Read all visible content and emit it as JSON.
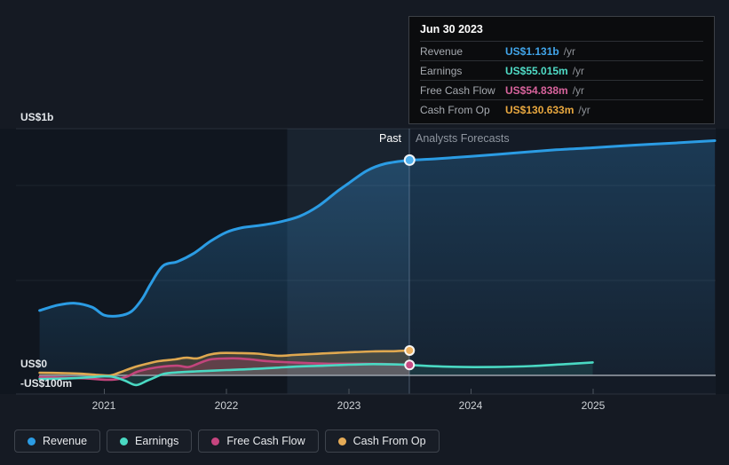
{
  "tooltip": {
    "date": "Jun 30 2023",
    "rows": [
      {
        "label": "Revenue",
        "value": "US$1.131b",
        "suffix": "/yr",
        "color": "#41a5ea"
      },
      {
        "label": "Earnings",
        "value": "US$55.015m",
        "suffix": "/yr",
        "color": "#4fdcc6"
      },
      {
        "label": "Free Cash Flow",
        "value": "US$54.838m",
        "suffix": "/yr",
        "color": "#d8639c"
      },
      {
        "label": "Cash From Op",
        "value": "US$130.633m",
        "suffix": "/yr",
        "color": "#e9a83f"
      }
    ]
  },
  "labels": {
    "past": "Past",
    "forecast": "Analysts Forecasts"
  },
  "axis": {
    "y_labels": [
      "US$1b",
      "US$0",
      "-US$100m"
    ],
    "x_labels": [
      "2021",
      "2022",
      "2023",
      "2024",
      "2025"
    ]
  },
  "legend": [
    {
      "label": "Revenue",
      "color": "#2b9ce4"
    },
    {
      "label": "Earnings",
      "color": "#4ad9c3"
    },
    {
      "label": "Free Cash Flow",
      "color": "#c6457f"
    },
    {
      "label": "Cash From Op",
      "color": "#e5ab57"
    }
  ],
  "chart_data": {
    "type": "line",
    "x_unit": "year",
    "y_unit": "US$ millions per year",
    "ylim_m": [
      -100,
      1300
    ],
    "x_axis_ticks": [
      2021,
      2022,
      2023,
      2024,
      2025
    ],
    "y_gridline_values_m": [
      0,
      500,
      1000
    ],
    "past_forecast_boundary_x": 2023.5,
    "grid": true,
    "legend_position": "bottom-left",
    "series": [
      {
        "name": "Revenue",
        "color": "#2b9ce4",
        "width": 3,
        "fill": "gradient",
        "past": [
          [
            2020.47,
            341
          ],
          [
            2020.62,
            369
          ],
          [
            2020.76,
            379
          ],
          [
            2020.9,
            358
          ],
          [
            2021.0,
            316
          ],
          [
            2021.12,
            313
          ],
          [
            2021.22,
            335
          ],
          [
            2021.31,
            402
          ],
          [
            2021.38,
            481
          ],
          [
            2021.48,
            575
          ],
          [
            2021.6,
            598
          ],
          [
            2021.73,
            640
          ],
          [
            2021.87,
            705
          ],
          [
            2022.0,
            752
          ],
          [
            2022.13,
            776
          ],
          [
            2022.3,
            790
          ],
          [
            2022.45,
            808
          ],
          [
            2022.6,
            836
          ],
          [
            2022.75,
            888
          ],
          [
            2022.9,
            963
          ],
          [
            2023.0,
            1009
          ],
          [
            2023.15,
            1075
          ],
          [
            2023.3,
            1112
          ],
          [
            2023.5,
            1131
          ]
        ],
        "forecast": [
          [
            2023.5,
            1131
          ],
          [
            2023.7,
            1137
          ],
          [
            2024.0,
            1150
          ],
          [
            2024.35,
            1168
          ],
          [
            2024.7,
            1185
          ],
          [
            2025.0,
            1196
          ],
          [
            2025.35,
            1210
          ],
          [
            2025.7,
            1222
          ],
          [
            2026.0,
            1233
          ]
        ]
      },
      {
        "name": "Cash From Op",
        "color": "#dfa850",
        "width": 2.6,
        "fill_opacity": 0.22,
        "past": [
          [
            2020.47,
            14
          ],
          [
            2020.65,
            12
          ],
          [
            2020.8,
            9
          ],
          [
            2020.95,
            2
          ],
          [
            2021.05,
            0
          ],
          [
            2021.12,
            14
          ],
          [
            2021.24,
            42
          ],
          [
            2021.35,
            61
          ],
          [
            2021.45,
            75
          ],
          [
            2021.58,
            84
          ],
          [
            2021.67,
            93
          ],
          [
            2021.76,
            89
          ],
          [
            2021.85,
            107
          ],
          [
            2021.94,
            117
          ],
          [
            2022.1,
            117
          ],
          [
            2022.25,
            114
          ],
          [
            2022.42,
            103
          ],
          [
            2022.55,
            107
          ],
          [
            2022.7,
            112
          ],
          [
            2022.85,
            117
          ],
          [
            2023.0,
            121
          ],
          [
            2023.2,
            126
          ],
          [
            2023.35,
            127
          ],
          [
            2023.5,
            130.6
          ]
        ]
      },
      {
        "name": "Free Cash Flow",
        "color": "#c2457c",
        "width": 2.6,
        "fill_opacity": 0.25,
        "past": [
          [
            2020.47,
            -9
          ],
          [
            2020.65,
            -12
          ],
          [
            2020.85,
            -16
          ],
          [
            2021.0,
            -23
          ],
          [
            2021.1,
            -21
          ],
          [
            2021.19,
            -5
          ],
          [
            2021.27,
            19
          ],
          [
            2021.38,
            37
          ],
          [
            2021.49,
            47
          ],
          [
            2021.6,
            51
          ],
          [
            2021.69,
            44
          ],
          [
            2021.78,
            65
          ],
          [
            2021.87,
            84
          ],
          [
            2022.0,
            89
          ],
          [
            2022.1,
            89
          ],
          [
            2022.2,
            84
          ],
          [
            2022.33,
            75
          ],
          [
            2022.47,
            70
          ],
          [
            2022.65,
            65
          ],
          [
            2022.84,
            61
          ],
          [
            2023.05,
            61
          ],
          [
            2023.27,
            60
          ],
          [
            2023.5,
            54.8
          ]
        ]
      },
      {
        "name": "Earnings",
        "color": "#4ad9c3",
        "width": 2.6,
        "fill_opacity": 0.16,
        "past": [
          [
            2020.47,
            -19
          ],
          [
            2020.7,
            -16
          ],
          [
            2020.9,
            -9
          ],
          [
            2021.0,
            -5
          ],
          [
            2021.08,
            -9
          ],
          [
            2021.17,
            -28
          ],
          [
            2021.26,
            -51
          ],
          [
            2021.35,
            -28
          ],
          [
            2021.42,
            -9
          ],
          [
            2021.49,
            9
          ],
          [
            2021.6,
            16
          ],
          [
            2021.75,
            21
          ],
          [
            2022.0,
            28
          ],
          [
            2022.2,
            33
          ],
          [
            2022.4,
            40
          ],
          [
            2022.6,
            47
          ],
          [
            2022.8,
            51
          ],
          [
            2023.0,
            56
          ],
          [
            2023.2,
            59
          ],
          [
            2023.35,
            58
          ],
          [
            2023.5,
            55
          ]
        ],
        "forecast": [
          [
            2023.5,
            55
          ],
          [
            2023.7,
            48
          ],
          [
            2023.95,
            44
          ],
          [
            2024.2,
            44
          ],
          [
            2024.5,
            49
          ],
          [
            2024.75,
            58
          ],
          [
            2025.0,
            68
          ]
        ]
      }
    ],
    "markers": [
      {
        "series": "Revenue",
        "x": 2023.5,
        "value_m": 1131,
        "fill": "#4fb0ee",
        "r": 5.5
      },
      {
        "series": "Cash From Op",
        "x": 2023.5,
        "value_m": 130.633,
        "fill": "#edb05e",
        "r": 5
      },
      {
        "series": "Free Cash Flow",
        "x": 2023.5,
        "value_m": 54.838,
        "fill": "#c64a82",
        "r": 5
      }
    ]
  }
}
